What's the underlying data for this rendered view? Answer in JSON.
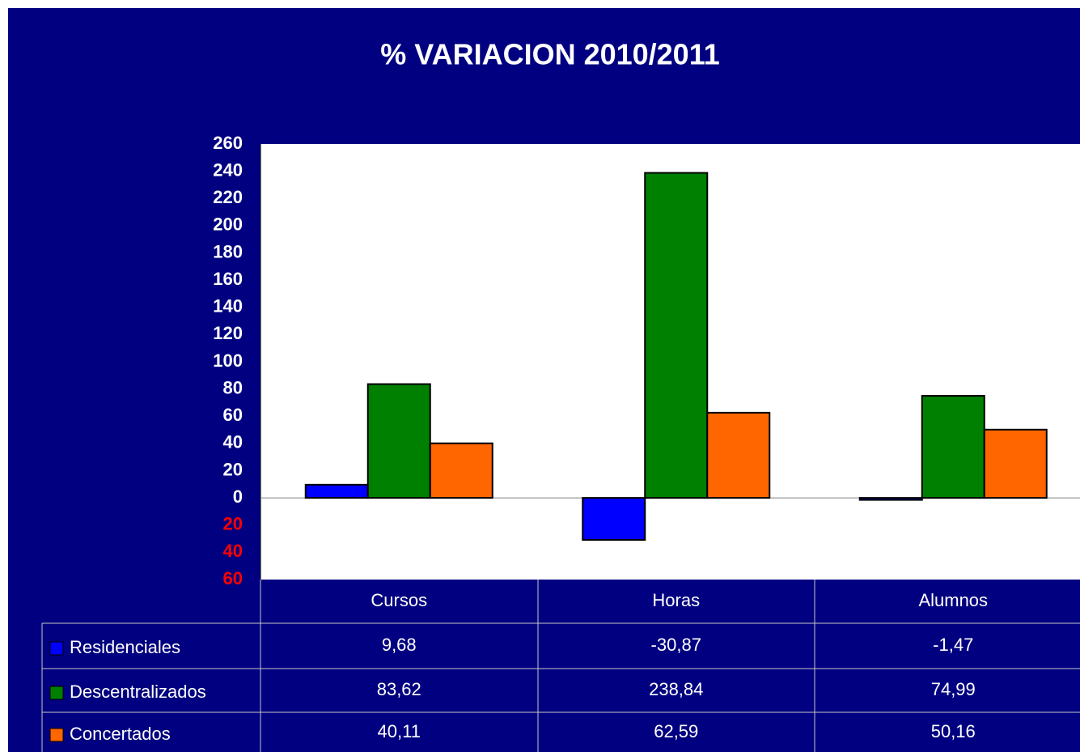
{
  "chart_data": {
    "type": "bar",
    "title": "% VARIACION 2010/2011",
    "categories": [
      "Cursos",
      "Horas",
      "Alumnos"
    ],
    "series": [
      {
        "name": "Residenciales",
        "color": "#0000ff",
        "values": [
          9.68,
          -30.87,
          -1.47
        ],
        "value_labels": [
          "9,68",
          "-30,87",
          "-1,47"
        ]
      },
      {
        "name": "Descentralizados",
        "color": "#008000",
        "values": [
          83.62,
          238.84,
          74.99
        ],
        "value_labels": [
          "83,62",
          "238,84",
          "74,99"
        ]
      },
      {
        "name": "Concertados",
        "color": "#ff6600",
        "values": [
          40.11,
          62.59,
          50.16
        ],
        "value_labels": [
          "40,11",
          "62,59",
          "50,16"
        ]
      }
    ],
    "ylim": [
      -60,
      260
    ],
    "yticks": [
      {
        "value": -60,
        "label": "60"
      },
      {
        "value": -40,
        "label": "40"
      },
      {
        "value": -20,
        "label": "20"
      },
      0,
      20,
      40,
      60,
      80,
      100,
      120,
      140,
      160,
      180,
      200,
      220,
      240,
      260
    ],
    "negative_tick_color": "#ff0000",
    "grid": false
  }
}
